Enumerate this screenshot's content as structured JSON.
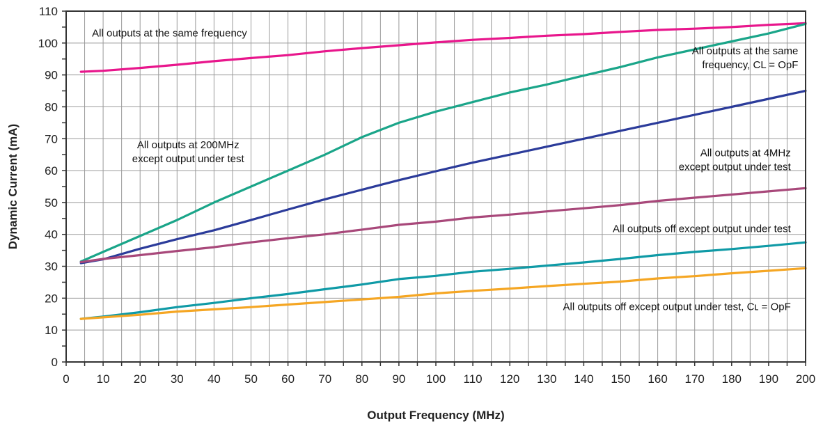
{
  "chart_data": {
    "type": "line",
    "title": "",
    "xlabel": "Output Frequency (MHz)",
    "ylabel": "Dynamic Current (mA)",
    "xlim": [
      0,
      200
    ],
    "ylim": [
      0,
      110
    ],
    "x_ticks": [
      0,
      10,
      20,
      30,
      40,
      50,
      60,
      70,
      80,
      90,
      100,
      110,
      120,
      130,
      140,
      150,
      160,
      170,
      180,
      190,
      200
    ],
    "y_ticks": [
      0,
      10,
      20,
      30,
      40,
      50,
      60,
      70,
      80,
      90,
      100,
      110
    ],
    "grid": true,
    "legend": "none",
    "series": [
      {
        "color": "#e8168c",
        "x": [
          4,
          10,
          20,
          30,
          40,
          50,
          60,
          70,
          80,
          90,
          100,
          110,
          120,
          130,
          140,
          150,
          160,
          170,
          180,
          190,
          200
        ],
        "y": [
          91,
          91.3,
          92.2,
          93.2,
          94.3,
          95.3,
          96.2,
          97.4,
          98.4,
          99.3,
          100.2,
          101,
          101.6,
          102.3,
          102.8,
          103.5,
          104.1,
          104.5,
          105,
          105.7,
          106.2
        ]
      },
      {
        "color": "#1aa589",
        "x": [
          4,
          10,
          20,
          30,
          40,
          50,
          60,
          70,
          80,
          90,
          100,
          110,
          120,
          130,
          140,
          150,
          160,
          170,
          180,
          190,
          200
        ],
        "y": [
          31.5,
          34.5,
          39.5,
          44.5,
          50,
          55,
          60,
          65,
          70.5,
          75,
          78.5,
          81.5,
          84.5,
          87,
          89.8,
          92.5,
          95.5,
          98,
          100.5,
          103,
          106
        ]
      },
      {
        "color": "#2b3b9a",
        "x": [
          4,
          10,
          20,
          30,
          40,
          50,
          60,
          70,
          80,
          90,
          100,
          110,
          120,
          130,
          140,
          150,
          160,
          170,
          180,
          190,
          200
        ],
        "y": [
          31,
          32.2,
          35.5,
          38.5,
          41.3,
          44.5,
          47.8,
          51,
          54,
          57,
          59.8,
          62.5,
          65,
          67.5,
          70,
          72.5,
          75,
          77.5,
          80,
          82.5,
          85
        ]
      },
      {
        "color": "#a8487a",
        "x": [
          4,
          10,
          20,
          30,
          40,
          50,
          60,
          70,
          80,
          90,
          100,
          110,
          120,
          130,
          140,
          150,
          160,
          170,
          180,
          190,
          200
        ],
        "y": [
          31.3,
          32.3,
          33.5,
          34.8,
          36,
          37.5,
          38.8,
          40,
          41.5,
          43,
          44,
          45.3,
          46.2,
          47.2,
          48.2,
          49.2,
          50.5,
          51.5,
          52.5,
          53.5,
          54.5
        ]
      },
      {
        "color": "#0f9aa6",
        "x": [
          4,
          10,
          20,
          30,
          40,
          50,
          60,
          70,
          80,
          90,
          100,
          110,
          120,
          130,
          140,
          150,
          160,
          170,
          180,
          190,
          200
        ],
        "y": [
          13.5,
          14.2,
          15.6,
          17.2,
          18.5,
          20,
          21.3,
          22.8,
          24.3,
          26,
          27,
          28.3,
          29.2,
          30.2,
          31.2,
          32.3,
          33.5,
          34.5,
          35.4,
          36.4,
          37.5
        ]
      },
      {
        "color": "#f5a623",
        "x": [
          4,
          10,
          20,
          30,
          40,
          50,
          60,
          70,
          80,
          90,
          100,
          110,
          120,
          130,
          140,
          150,
          160,
          170,
          180,
          190,
          200
        ],
        "y": [
          13.5,
          14,
          14.8,
          15.8,
          16.5,
          17.2,
          18,
          18.8,
          19.6,
          20.4,
          21.5,
          22.3,
          23,
          23.8,
          24.5,
          25.2,
          26.2,
          26.9,
          27.8,
          28.6,
          29.4
        ]
      }
    ],
    "annotations": [
      {
        "lines": [
          "All outputs at the same frequency"
        ],
        "x": 7,
        "y": 102,
        "anchor": "start"
      },
      {
        "lines": [
          "All outputs at the same",
          "frequency, CL = OpF"
        ],
        "x": 198,
        "y": 96.5,
        "anchor": "end"
      },
      {
        "lines": [
          "All outputs at 200MHz",
          "except output under test"
        ],
        "x": 33,
        "y": 67,
        "anchor": "middle"
      },
      {
        "lines": [
          "All outputs at 4MHz",
          "except output under test"
        ],
        "x": 196,
        "y": 64.5,
        "anchor": "end"
      },
      {
        "lines": [
          "All outputs off except output under test"
        ],
        "x": 196,
        "y": 40.7,
        "anchor": "end"
      },
      {
        "lines": [
          "All outputs off except output under test, Cʟ = OpF"
        ],
        "x": 196,
        "y": 16.3,
        "anchor": "end"
      }
    ]
  }
}
